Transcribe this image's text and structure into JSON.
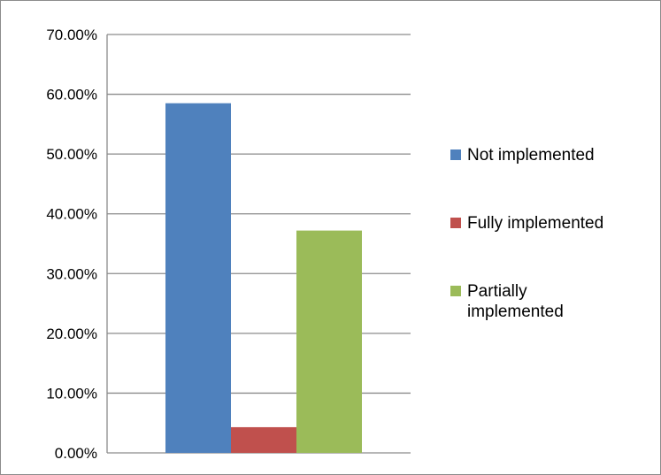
{
  "chart_data": {
    "type": "bar",
    "title": "",
    "xlabel": "",
    "ylabel": "",
    "categories": [
      ""
    ],
    "series": [
      {
        "name": "Not implemented",
        "values": [
          58.5
        ],
        "color": "#4f81bd"
      },
      {
        "name": "Fully implemented",
        "values": [
          4.3
        ],
        "color": "#c0504d"
      },
      {
        "name": "Partially implemented",
        "values": [
          37.2
        ],
        "color": "#9bbb59"
      }
    ],
    "ylim": [
      0,
      70
    ],
    "yticks": [
      0,
      10,
      20,
      30,
      40,
      50,
      60,
      70
    ],
    "ytick_labels": [
      "0.00%",
      "10.00%",
      "20.00%",
      "30.00%",
      "40.00%",
      "50.00%",
      "60.00%",
      "70.00%"
    ],
    "legend_labels": [
      [
        "Not implemented"
      ],
      [
        "Fully implemented"
      ],
      [
        "Partially",
        "implemented"
      ]
    ],
    "legend_position": "right",
    "grid": true,
    "value_format": "percent"
  },
  "colors": {
    "gridline": "#8c8c8c",
    "axis": "#8c8c8c",
    "border": "#8c8c8c"
  }
}
